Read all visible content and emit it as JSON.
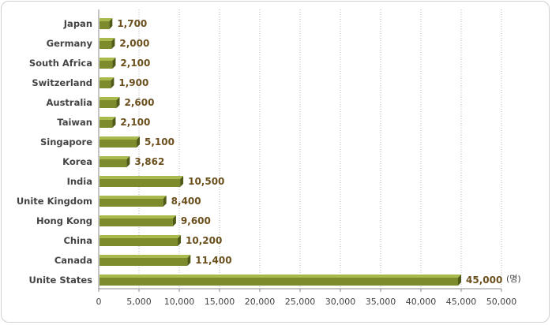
{
  "chart_data": {
    "type": "bar",
    "orientation": "horizontal",
    "categories": [
      "Japan",
      "Germany",
      "South Africa",
      "Switzerland",
      "Australia",
      "Taiwan",
      "Singapore",
      "Korea",
      "India",
      "Unite Kingdom",
      "Hong Kong",
      "China",
      "Canada",
      "Unite States"
    ],
    "values": [
      1700,
      2000,
      2100,
      1900,
      2600,
      2100,
      5100,
      3862,
      10500,
      8400,
      9600,
      10200,
      11400,
      45000
    ],
    "value_labels": [
      "1,700",
      "2,000",
      "2,100",
      "1,900",
      "2,600",
      "2,100",
      "5,100",
      "3,862",
      "10,500",
      "8,400",
      "9,600",
      "10,200",
      "11,400",
      "45,000"
    ],
    "xlim": [
      0,
      50000
    ],
    "xticks": [
      0,
      5000,
      10000,
      15000,
      20000,
      25000,
      30000,
      35000,
      40000,
      45000,
      50000
    ],
    "xtick_labels": [
      "0",
      "5,000",
      "10,000",
      "15,000",
      "20,000",
      "25,000",
      "30,000",
      "35,000",
      "40,000",
      "45,000",
      "50,000"
    ],
    "unit": "(명)",
    "grid": "vertical dotted",
    "colors": {
      "bar_face": "#7d8b2c",
      "bar_top": "#aab94e",
      "bar_side": "#4f5a17",
      "value_text": "#6b4f1d",
      "grid": "#b5b5b5"
    }
  }
}
